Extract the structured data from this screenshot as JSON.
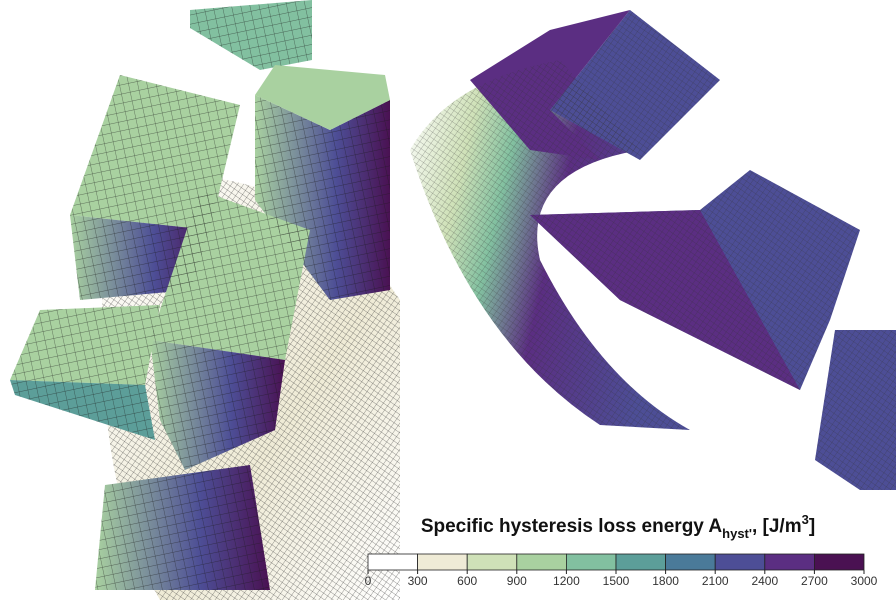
{
  "colorbar": {
    "title": "Specific hysteresis loss energy A",
    "title_subscript": "hyst'",
    "title_unit": ", [J/m",
    "title_superscript": "3",
    "title_end": "]",
    "ticks": [
      0,
      300,
      600,
      900,
      1200,
      1500,
      1800,
      2100,
      2400,
      2700,
      3000
    ],
    "colors": [
      "#ffffff",
      "#efebd6",
      "#cfe1b8",
      "#a9d1a0",
      "#82c0a0",
      "#5c9e99",
      "#4a7a99",
      "#4d4e96",
      "#5b2e82",
      "#4a1152"
    ]
  }
}
